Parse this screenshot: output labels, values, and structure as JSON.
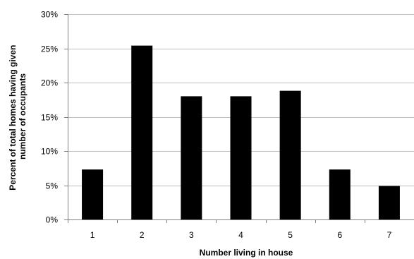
{
  "chart_data": {
    "type": "bar",
    "categories": [
      "1",
      "2",
      "3",
      "4",
      "5",
      "6",
      "7"
    ],
    "values": [
      7.3,
      25.4,
      18.0,
      18.0,
      18.8,
      7.3,
      4.9
    ],
    "xlabel": "Number living  in house",
    "ylabel": "Percent of total homes having given number of occupants",
    "ylabel_lines": [
      "Percent of total homes having given",
      "number of occupants"
    ],
    "ylim": [
      0,
      30
    ],
    "yticks": [
      0,
      5,
      10,
      15,
      20,
      25,
      30
    ],
    "ytick_labels": [
      "0%",
      "5%",
      "10%",
      "15%",
      "20%",
      "25%",
      "30%"
    ],
    "grid": true,
    "bar_color": "#000000",
    "grid_color": "#bfbfbf"
  }
}
